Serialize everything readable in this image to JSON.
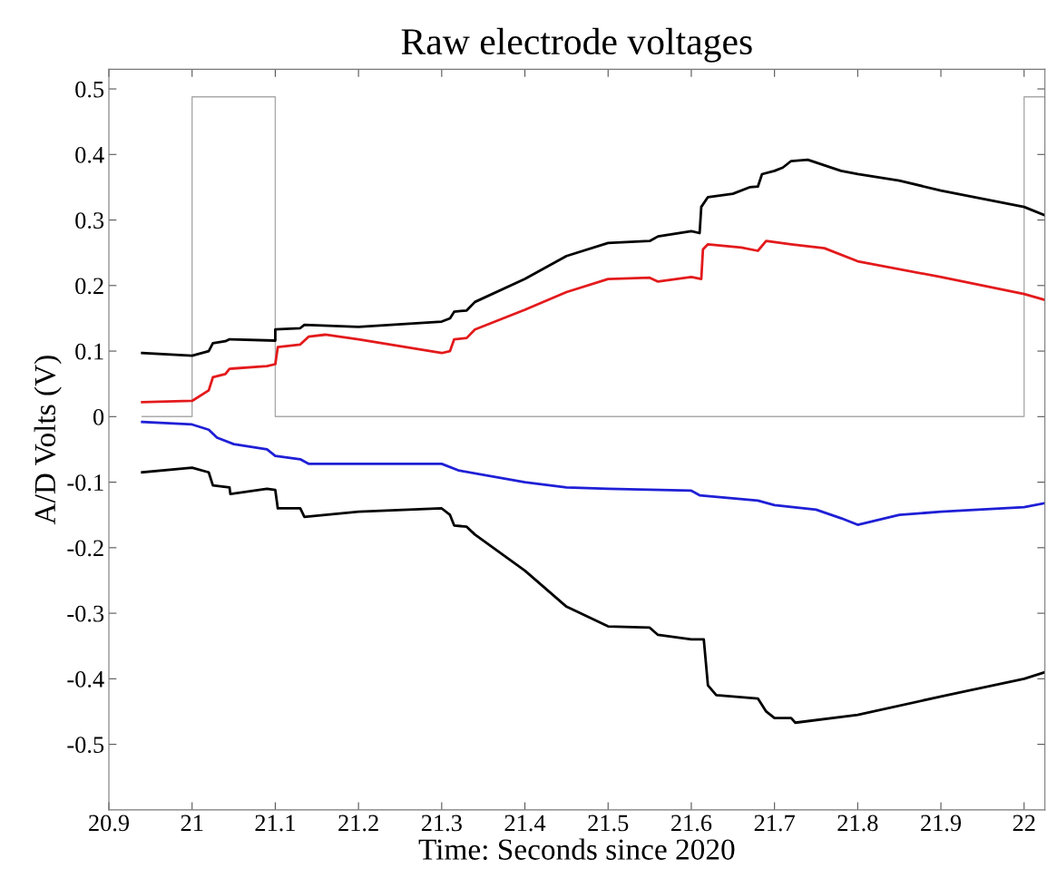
{
  "chart_data": {
    "type": "line",
    "title": "Raw electrode voltages",
    "xlabel": "Time: Seconds since 2020",
    "ylabel": "A/D Volts (V)",
    "xlim": [
      20.9,
      22.025
    ],
    "xticks": [
      20.9,
      21,
      21.1,
      21.2,
      21.3,
      21.4,
      21.5,
      21.6,
      21.7,
      21.8,
      21.9,
      22
    ],
    "ylim": [
      -0.6,
      0.53
    ],
    "yticks": [
      -0.5,
      -0.4,
      -0.3,
      -0.2,
      -0.1,
      0,
      0.1,
      0.2,
      0.3,
      0.4,
      0.5
    ],
    "grid": false,
    "legend": false,
    "marker": "none",
    "line_style": "solid",
    "series": [
      {
        "color": "#aaaaaa",
        "x": [
          20.94,
          21.0,
          21.0,
          21.1,
          21.1,
          22.0,
          22.0,
          22.025
        ],
        "values": [
          0,
          0,
          0.488,
          0.488,
          0,
          0,
          0.488,
          0.488
        ]
      },
      {
        "color": "#000000",
        "x": [
          20.94,
          21.0,
          21.02,
          21.025,
          21.04,
          21.045,
          21.1,
          21.1,
          21.13,
          21.135,
          21.2,
          21.3,
          21.31,
          21.315,
          21.33,
          21.34,
          21.4,
          21.45,
          21.5,
          21.55,
          21.56,
          21.6,
          21.61,
          21.612,
          21.62,
          21.65,
          21.67,
          21.68,
          21.685,
          21.7,
          21.71,
          21.72,
          21.74,
          21.78,
          21.8,
          21.85,
          21.9,
          22.0,
          22.025
        ],
        "values": [
          0.097,
          0.093,
          0.1,
          0.112,
          0.115,
          0.118,
          0.116,
          0.133,
          0.135,
          0.14,
          0.137,
          0.145,
          0.15,
          0.16,
          0.162,
          0.175,
          0.21,
          0.245,
          0.265,
          0.268,
          0.275,
          0.283,
          0.28,
          0.32,
          0.335,
          0.34,
          0.35,
          0.351,
          0.37,
          0.375,
          0.38,
          0.39,
          0.392,
          0.375,
          0.37,
          0.36,
          0.345,
          0.32,
          0.307
        ]
      },
      {
        "color": "#e31a1c",
        "x": [
          20.94,
          21.0,
          21.02,
          21.025,
          21.04,
          21.045,
          21.09,
          21.1,
          21.103,
          21.13,
          21.14,
          21.16,
          21.2,
          21.3,
          21.31,
          21.315,
          21.33,
          21.34,
          21.4,
          21.45,
          21.5,
          21.55,
          21.56,
          21.6,
          21.612,
          21.614,
          21.62,
          21.66,
          21.68,
          21.69,
          21.72,
          21.76,
          21.8,
          21.9,
          22.0,
          22.025
        ],
        "values": [
          0.022,
          0.024,
          0.04,
          0.06,
          0.065,
          0.073,
          0.077,
          0.08,
          0.106,
          0.11,
          0.122,
          0.125,
          0.118,
          0.097,
          0.1,
          0.118,
          0.12,
          0.133,
          0.163,
          0.19,
          0.21,
          0.212,
          0.206,
          0.213,
          0.21,
          0.255,
          0.263,
          0.258,
          0.253,
          0.268,
          0.263,
          0.257,
          0.237,
          0.213,
          0.187,
          0.178
        ]
      },
      {
        "color": "#1f1fd6",
        "x": [
          20.94,
          21.0,
          21.02,
          21.03,
          21.05,
          21.09,
          21.1,
          21.13,
          21.14,
          21.3,
          21.32,
          21.4,
          21.45,
          21.5,
          21.6,
          21.61,
          21.68,
          21.7,
          21.75,
          21.78,
          21.8,
          21.85,
          21.9,
          22.0,
          22.025
        ],
        "values": [
          -0.008,
          -0.012,
          -0.02,
          -0.032,
          -0.042,
          -0.05,
          -0.06,
          -0.065,
          -0.072,
          -0.072,
          -0.082,
          -0.1,
          -0.108,
          -0.11,
          -0.113,
          -0.12,
          -0.128,
          -0.135,
          -0.142,
          -0.155,
          -0.165,
          -0.15,
          -0.145,
          -0.138,
          -0.132
        ]
      },
      {
        "color": "#000000",
        "x": [
          20.94,
          21.0,
          21.02,
          21.025,
          21.045,
          21.046,
          21.09,
          21.1,
          21.103,
          21.13,
          21.135,
          21.2,
          21.3,
          21.31,
          21.315,
          21.33,
          21.34,
          21.4,
          21.45,
          21.5,
          21.55,
          21.56,
          21.6,
          21.615,
          21.62,
          21.63,
          21.68,
          21.69,
          21.7,
          21.72,
          21.725,
          21.8,
          21.9,
          22.0,
          22.025
        ],
        "values": [
          -0.085,
          -0.078,
          -0.085,
          -0.105,
          -0.108,
          -0.118,
          -0.11,
          -0.112,
          -0.14,
          -0.14,
          -0.153,
          -0.145,
          -0.14,
          -0.15,
          -0.166,
          -0.168,
          -0.18,
          -0.235,
          -0.29,
          -0.32,
          -0.322,
          -0.333,
          -0.34,
          -0.34,
          -0.41,
          -0.425,
          -0.43,
          -0.45,
          -0.46,
          -0.46,
          -0.467,
          -0.455,
          -0.427,
          -0.4,
          -0.39
        ]
      }
    ]
  }
}
